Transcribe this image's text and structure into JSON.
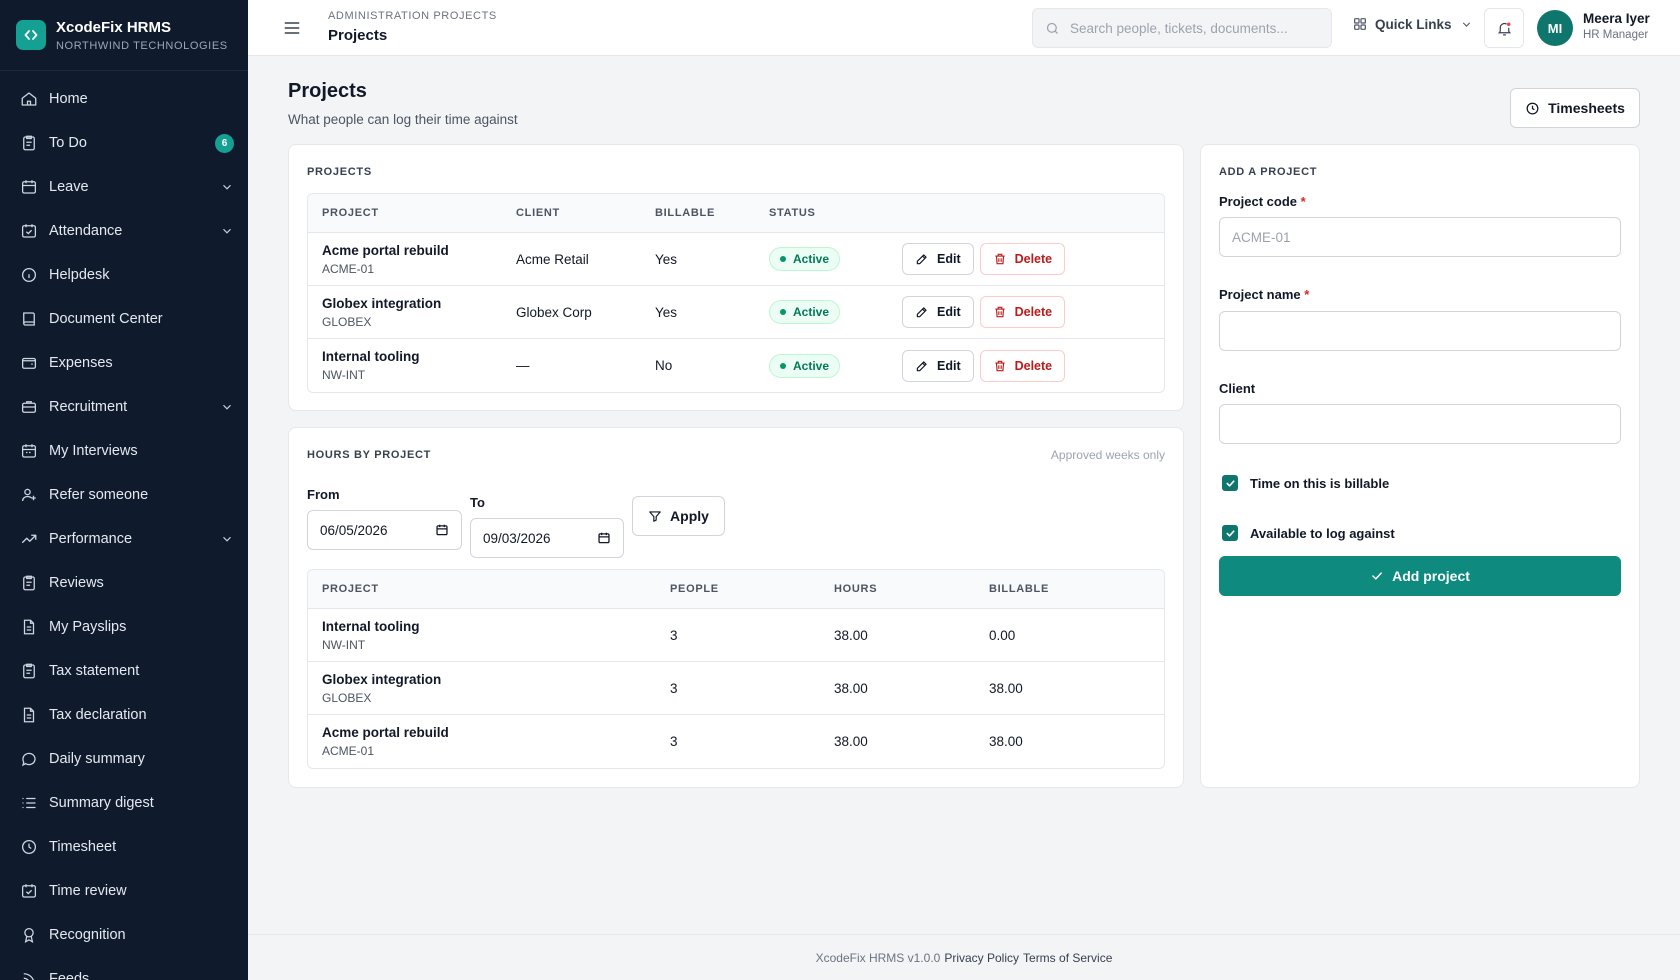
{
  "brand": {
    "name": "XcodeFix HRMS",
    "org": "NORTHWIND TECHNOLOGIES"
  },
  "sidebar": {
    "items": [
      {
        "label": "Home",
        "icon": "home-icon"
      },
      {
        "label": "To Do",
        "icon": "clipboard-icon",
        "badge": "6"
      },
      {
        "label": "Leave",
        "icon": "calendar-icon",
        "expandable": true
      },
      {
        "label": "Attendance",
        "icon": "calendar-check-icon",
        "expandable": true
      },
      {
        "label": "Helpdesk",
        "icon": "info-icon"
      },
      {
        "label": "Document Center",
        "icon": "book-icon"
      },
      {
        "label": "Expenses",
        "icon": "wallet-icon"
      },
      {
        "label": "Recruitment",
        "icon": "briefcase-icon",
        "expandable": true
      },
      {
        "label": "My Interviews",
        "icon": "calendar-icon"
      },
      {
        "label": "Refer someone",
        "icon": "user-plus-icon"
      },
      {
        "label": "Performance",
        "icon": "trending-up-icon",
        "expandable": true
      },
      {
        "label": "Reviews",
        "icon": "clipboard-icon"
      },
      {
        "label": "My Payslips",
        "icon": "file-icon"
      },
      {
        "label": "Tax statement",
        "icon": "clipboard-icon"
      },
      {
        "label": "Tax declaration",
        "icon": "file-icon"
      },
      {
        "label": "Daily summary",
        "icon": "message-icon"
      },
      {
        "label": "Summary digest",
        "icon": "list-icon"
      },
      {
        "label": "Timesheet",
        "icon": "clock-icon"
      },
      {
        "label": "Time review",
        "icon": "calendar-check-icon"
      },
      {
        "label": "Recognition",
        "icon": "award-icon"
      },
      {
        "label": "Feeds",
        "icon": "rss-icon"
      }
    ]
  },
  "topbar": {
    "breadcrumb": "ADMINISTRATION PROJECTS",
    "title": "Projects",
    "search_placeholder": "Search people, tickets, documents...",
    "quick_links": "Quick Links",
    "user": {
      "initials": "MI",
      "name": "Meera Iyer",
      "role": "HR Manager"
    }
  },
  "page": {
    "title": "Projects",
    "subtitle": "What people can log their time against",
    "timesheets_button": "Timesheets"
  },
  "projects": {
    "section_label": "PROJECTS",
    "columns": [
      "PROJECT",
      "CLIENT",
      "BILLABLE",
      "STATUS"
    ],
    "edit_label": "Edit",
    "delete_label": "Delete",
    "rows": [
      {
        "name": "Acme portal rebuild",
        "code": "ACME-01",
        "client": "Acme Retail",
        "billable": "Yes",
        "status": "Active"
      },
      {
        "name": "Globex integration",
        "code": "GLOBEX",
        "client": "Globex Corp",
        "billable": "Yes",
        "status": "Active"
      },
      {
        "name": "Internal tooling",
        "code": "NW-INT",
        "client": "—",
        "billable": "No",
        "status": "Active"
      }
    ]
  },
  "hours": {
    "section_label": "HOURS BY PROJECT",
    "note": "Approved weeks only",
    "from_label": "From",
    "from_value": "06/05/2026",
    "to_label": "To",
    "to_value": "09/03/2026",
    "apply_label": "Apply",
    "columns": [
      "PROJECT",
      "PEOPLE",
      "HOURS",
      "BILLABLE"
    ],
    "rows": [
      {
        "name": "Internal tooling",
        "code": "NW-INT",
        "people": "3",
        "hours": "38.00",
        "billable": "0.00"
      },
      {
        "name": "Globex integration",
        "code": "GLOBEX",
        "people": "3",
        "hours": "38.00",
        "billable": "38.00"
      },
      {
        "name": "Acme portal rebuild",
        "code": "ACME-01",
        "people": "3",
        "hours": "38.00",
        "billable": "38.00"
      }
    ]
  },
  "add_project": {
    "section_label": "ADD A PROJECT",
    "code_label": "Project code",
    "code_placeholder": "ACME-01",
    "name_label": "Project name",
    "client_label": "Client",
    "required_mark": "*",
    "billable_check": "Time on this is billable",
    "available_check": "Available to log against",
    "submit_label": "Add project"
  },
  "footer": {
    "version": "XcodeFix HRMS v1.0.0",
    "privacy": "Privacy Policy",
    "terms": "Terms of Service"
  },
  "colors": {
    "sidebar_bg": "#0f1b2d",
    "accent": "#0f8a7e",
    "status_active": "#047857",
    "danger": "#b91c1c"
  }
}
